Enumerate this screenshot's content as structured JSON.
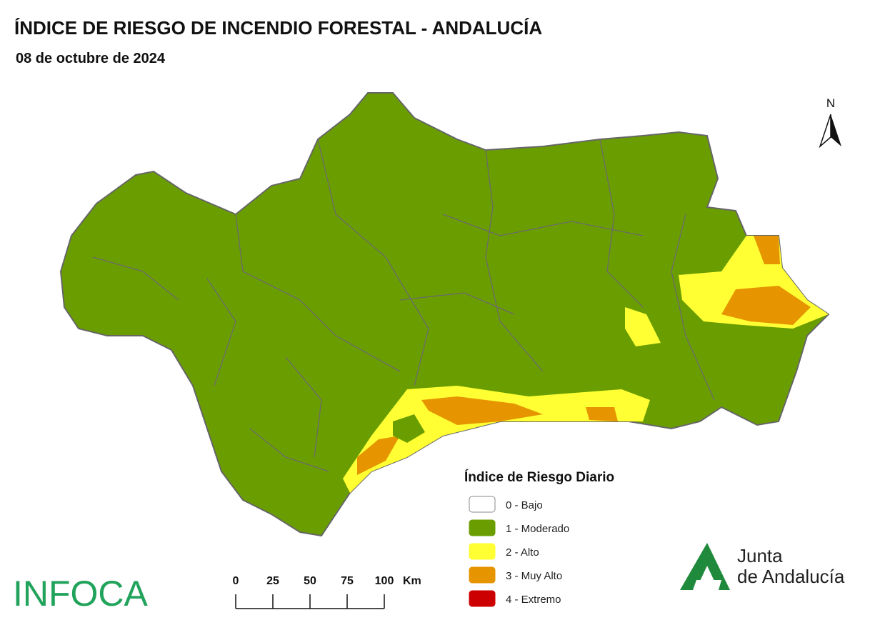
{
  "header": {
    "title": "ÍNDICE DE RIESGO DE INCENDIO FORESTAL - ANDALUCÍA",
    "date": "08 de octubre de 2024"
  },
  "north_arrow": "N",
  "legend": {
    "title": "Índice de Riesgo Diario",
    "items": [
      {
        "label": "0 - Bajo",
        "color": "#ffffff"
      },
      {
        "label": "1 - Moderado",
        "color": "#6a9e00"
      },
      {
        "label": "2 - Alto",
        "color": "#ffff33"
      },
      {
        "label": "3 - Muy Alto",
        "color": "#e69500"
      },
      {
        "label": "4 - Extremo",
        "color": "#cc0000"
      }
    ]
  },
  "scale_bar": {
    "ticks": [
      0,
      25,
      50,
      75,
      100
    ],
    "unit": "Km"
  },
  "logos": {
    "infoca": "INFOCA",
    "junta_line1": "Junta",
    "junta_line2": "de Andalucía"
  }
}
